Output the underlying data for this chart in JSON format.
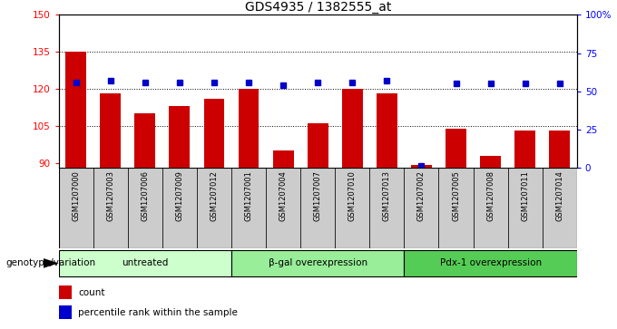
{
  "title": "GDS4935 / 1382555_at",
  "samples": [
    "GSM1207000",
    "GSM1207003",
    "GSM1207006",
    "GSM1207009",
    "GSM1207012",
    "GSM1207001",
    "GSM1207004",
    "GSM1207007",
    "GSM1207010",
    "GSM1207013",
    "GSM1207002",
    "GSM1207005",
    "GSM1207008",
    "GSM1207011",
    "GSM1207014"
  ],
  "counts": [
    135,
    118,
    110,
    113,
    116,
    120,
    95,
    106,
    120,
    118,
    89,
    104,
    93,
    103,
    103
  ],
  "percentile_ranks": [
    56,
    57,
    56,
    56,
    56,
    56,
    54,
    56,
    56,
    57,
    1,
    55,
    55,
    55,
    55
  ],
  "groups": [
    {
      "label": "untreated",
      "start": 0,
      "end": 5,
      "color": "#ccffcc"
    },
    {
      "label": "β-gal overexpression",
      "start": 5,
      "end": 10,
      "color": "#99ee99"
    },
    {
      "label": "Pdx-1 overexpression",
      "start": 10,
      "end": 15,
      "color": "#55cc55"
    }
  ],
  "ylim_left": [
    88,
    150
  ],
  "ylim_right": [
    0,
    100
  ],
  "yticks_left": [
    90,
    105,
    120,
    135,
    150
  ],
  "ytick_labels_left": [
    "90",
    "105",
    "120",
    "135",
    "150"
  ],
  "yticks_right": [
    0,
    25,
    50,
    75,
    100
  ],
  "ytick_labels_right": [
    "0",
    "25",
    "50",
    "75",
    "100%"
  ],
  "bar_color": "#cc0000",
  "dot_color": "#0000cc",
  "bar_width": 0.6,
  "background_color": "#ffffff",
  "plot_bg_color": "#ffffff",
  "legend_count_label": "count",
  "legend_pct_label": "percentile rank within the sample",
  "tick_bg_color": "#cccccc",
  "genotype_label": "genotype/variation"
}
